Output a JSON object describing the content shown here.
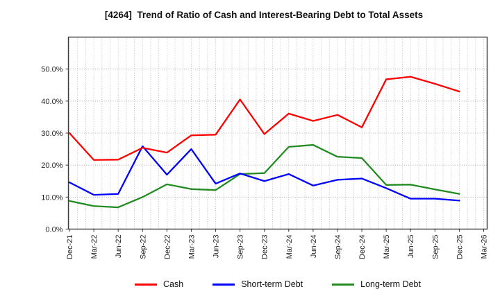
{
  "title": "[4264]  Trend of Ratio of Cash and Interest-Bearing Debt to Total Assets",
  "chart_data": {
    "type": "line",
    "title": "[4264]  Trend of Ratio of Cash and Interest-Bearing Debt to Total Assets",
    "x_labels": [
      "Dec-21",
      "Mar-22",
      "Jun-22",
      "Sep-22",
      "Dec-22",
      "Mar-23",
      "Jun-23",
      "Sep-23",
      "Dec-23",
      "Mar-24",
      "Jun-24",
      "Sep-24",
      "Dec-24",
      "Mar-25",
      "Jun-25",
      "Sep-25",
      "Dec-25",
      "Mar-26"
    ],
    "y_ticks": [
      {
        "value": 0,
        "label": "0.0%"
      },
      {
        "value": 10,
        "label": "10.0%"
      },
      {
        "value": 20,
        "label": "20.0%"
      },
      {
        "value": 30,
        "label": "30.0%"
      },
      {
        "value": 40,
        "label": "40.0%"
      },
      {
        "value": 50,
        "label": "50.0%"
      }
    ],
    "ylim": [
      0,
      60
    ],
    "grid": {
      "horizontal": "every 10%, dotted gray",
      "vertical": "monthly, dotted gray"
    },
    "legend_position": "bottom",
    "series": [
      {
        "name": "Cash",
        "color": "#ff0000",
        "values": [
          30.0,
          21.6,
          21.7,
          25.4,
          23.9,
          29.3,
          29.5,
          40.5,
          29.7,
          36.1,
          33.8,
          35.7,
          31.8,
          46.8,
          47.6,
          45.4,
          43.0
        ]
      },
      {
        "name": "Short-term Debt",
        "color": "#0000ff",
        "values": [
          14.6,
          10.7,
          11.0,
          25.9,
          17.0,
          25.0,
          14.2,
          17.4,
          15.0,
          17.2,
          13.6,
          15.4,
          15.8,
          12.8,
          9.5,
          9.5,
          8.9
        ]
      },
      {
        "name": "Long-term Debt",
        "color": "#228b22",
        "values": [
          8.8,
          7.2,
          6.8,
          10.0,
          14.0,
          12.5,
          12.2,
          17.2,
          17.5,
          25.7,
          26.3,
          22.6,
          22.2,
          13.8,
          13.9,
          12.4,
          11.0
        ]
      }
    ]
  }
}
